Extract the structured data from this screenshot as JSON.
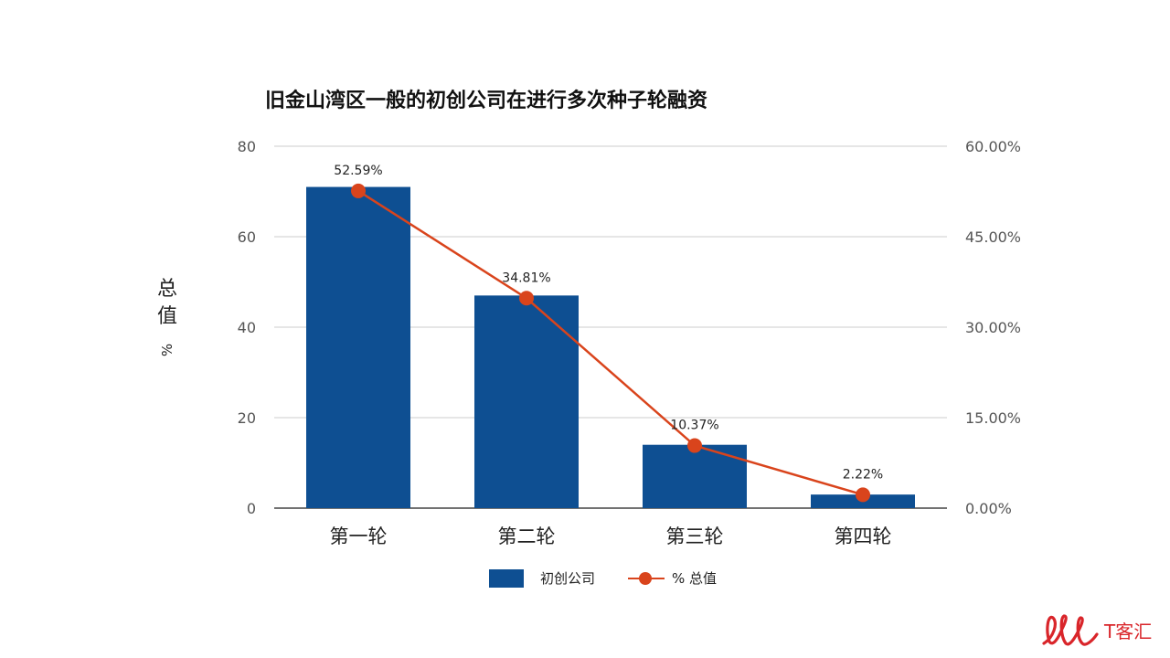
{
  "chart_data": {
    "type": "bar",
    "title": "旧金山湾区一般的初创公司在进行多次种子轮融资",
    "categories": [
      "第一轮",
      "第二轮",
      "第三轮",
      "第四轮"
    ],
    "series": [
      {
        "name": "初创公司",
        "type": "bar",
        "axis": "left",
        "values": [
          71,
          47,
          14,
          3
        ],
        "color": "#0e4f92"
      },
      {
        "name": "% 总值",
        "type": "line",
        "axis": "right",
        "values": [
          52.59,
          34.81,
          10.37,
          2.22
        ],
        "color": "#d9441c",
        "labels": [
          "52.59%",
          "34.81%",
          "10.37%",
          "2.22%"
        ]
      }
    ],
    "ylabel": "总值",
    "ylabel_unit": "%",
    "ylim": [
      0,
      80
    ],
    "y_ticks": [
      "0",
      "20",
      "40",
      "60",
      "80"
    ],
    "y2lim": [
      0,
      60
    ],
    "y2_ticks": [
      "0.00%",
      "15.00%",
      "30.00%",
      "45.00%",
      "60.00%"
    ],
    "grid": true,
    "legend_position": "bottom"
  },
  "legend": {
    "bar_label": "初创公司",
    "line_label": "% 总值"
  },
  "logo": {
    "text": "T客汇",
    "color": "#d9252a"
  }
}
